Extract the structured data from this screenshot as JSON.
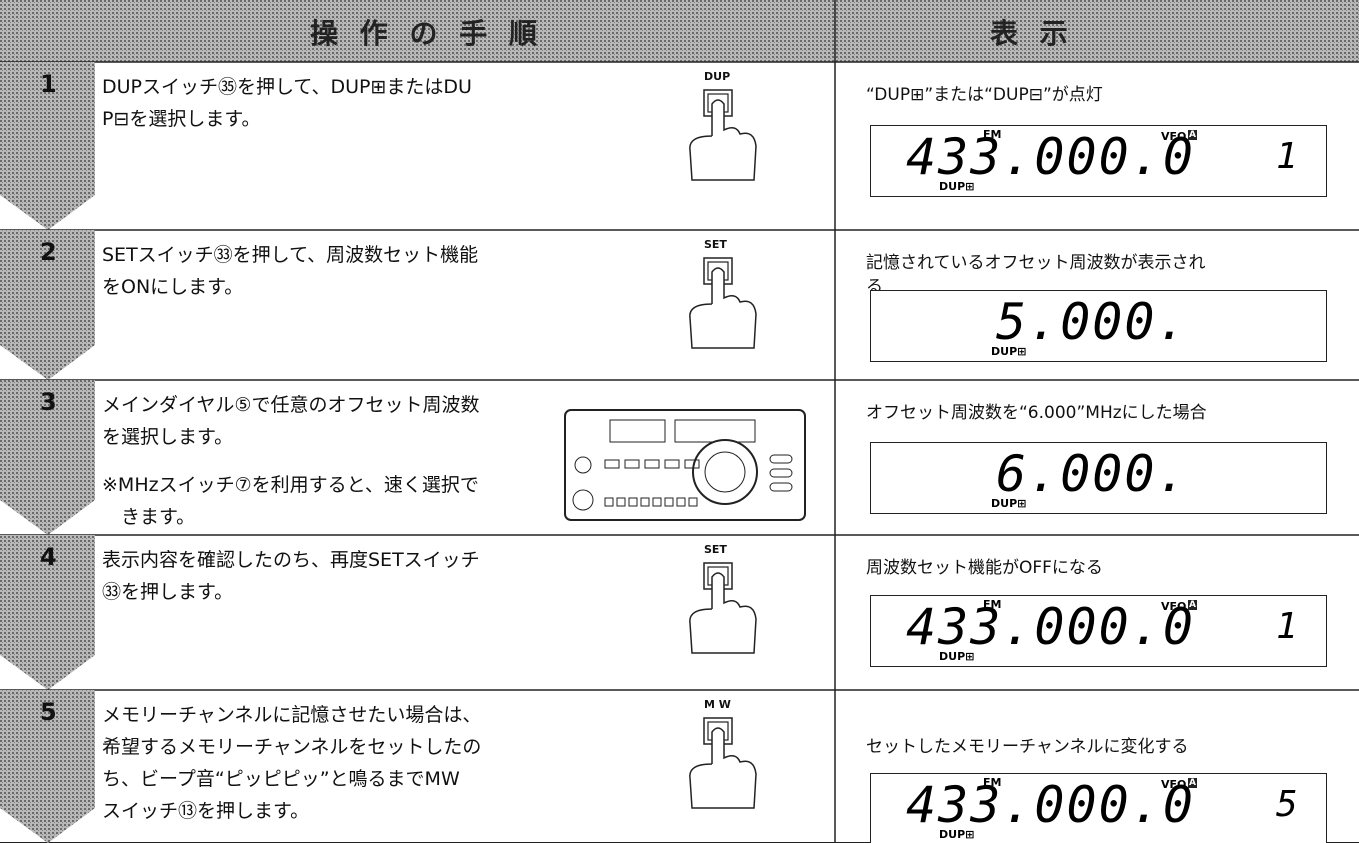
{
  "header": {
    "procedure": "操 作 の 手 順",
    "display": "表 示"
  },
  "steps": [
    {
      "number": "1",
      "instruction": [
        "DUPスイッチ㉟を押して、DUP⊞またはDU",
        "P⊟を選択します。"
      ],
      "button": "DUP",
      "caption": [
        "“DUP⊞”または“DUP⊟”が点灯"
      ],
      "lcd": {
        "mode": "FM",
        "vfo": "VFO",
        "vfo_letter": "A",
        "frequency": "433.000.0",
        "channel": "1",
        "dup": "DUP⊞"
      }
    },
    {
      "number": "2",
      "instruction": [
        "SETスイッチ㉝を押して、周波数セット機能",
        "をONにします。"
      ],
      "button": "SET",
      "caption": [
        "記憶されているオフセット周波数が表示され",
        "る"
      ],
      "lcd": {
        "frequency": "5.000.",
        "dup": "DUP⊞"
      }
    },
    {
      "number": "3",
      "instruction": [
        "メインダイヤル⑤で任意のオフセット周波数",
        "を選択します。",
        "※MHzスイッチ⑦を利用すると、速く選択で",
        "　きます。"
      ],
      "caption": [
        "オフセット周波数を“6.000”MHzにした場合"
      ],
      "lcd": {
        "frequency": "6.000.",
        "dup": "DUP⊞"
      }
    },
    {
      "number": "4",
      "instruction": [
        "表示内容を確認したのち、再度SETスイッチ",
        "㉝を押します。"
      ],
      "button": "SET",
      "caption": [
        "周波数セット機能がOFFになる"
      ],
      "lcd": {
        "mode": "FM",
        "vfo": "VFO",
        "vfo_letter": "A",
        "frequency": "433.000.0",
        "channel": "1",
        "dup": "DUP⊞"
      }
    },
    {
      "number": "5",
      "instruction": [
        "メモリーチャンネルに記憶させたい場合は、",
        "希望するメモリーチャンネルをセットしたの",
        "ち、ビープ音“ピッピピッ”と鳴るまでMW",
        "スイッチ⑬を押します。"
      ],
      "button": "M W",
      "caption": [
        "セットしたメモリーチャンネルに変化する"
      ],
      "lcd": {
        "mode": "FM",
        "vfo": "VFO",
        "vfo_letter": "A",
        "frequency": "433.000.0",
        "channel": "5",
        "dup": "DUP⊞"
      }
    }
  ]
}
